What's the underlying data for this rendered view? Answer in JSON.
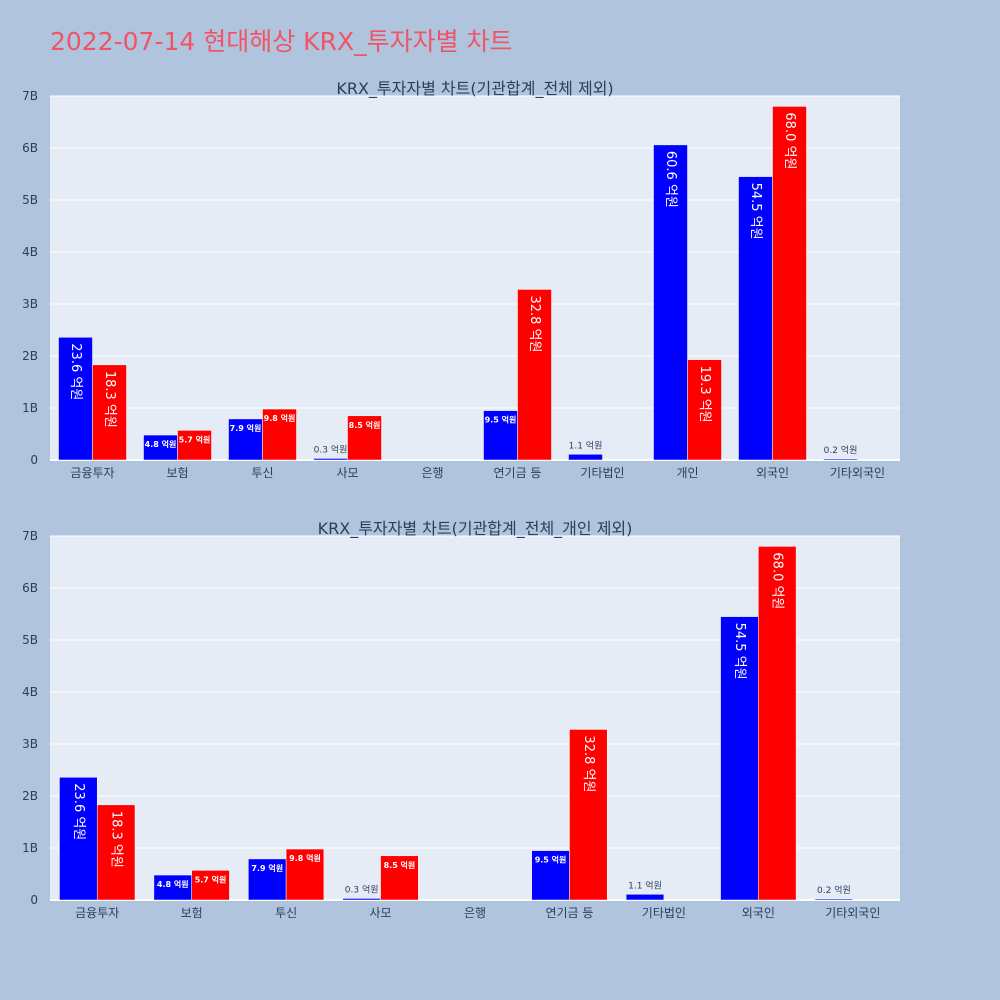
{
  "page": {
    "title": "2022-07-14 현대해상 KRX_투자자별 차트"
  },
  "colors": {
    "background": "#b0c4de",
    "plot_bg": "#e5ecf6",
    "title": "#ef5566",
    "series_1": "#0000ff",
    "series_2": "#ff0000",
    "text": "#2a3f5f"
  },
  "chart_data": [
    {
      "type": "bar",
      "title": "KRX_투자자별 차트(기관합계_전체 제외)",
      "categories": [
        "금융투자",
        "보험",
        "투신",
        "사모",
        "은행",
        "연기금 등",
        "기타법인",
        "개인",
        "외국인",
        "기타외국인"
      ],
      "series": [
        {
          "values": [
            2.36,
            0.48,
            0.79,
            0.03,
            0,
            0.95,
            0.11,
            6.06,
            5.45,
            0.02
          ],
          "labels": [
            "23.6 억원",
            "4.8 억원",
            "7.9 억원",
            "0.3 억원",
            "",
            "9.5 억원",
            "1.1 억원",
            "60.6 억원",
            "54.5 억원",
            "0.2 억원"
          ]
        },
        {
          "values": [
            1.83,
            0.57,
            0.98,
            0.85,
            0,
            3.28,
            0,
            1.93,
            6.8,
            0
          ],
          "labels": [
            "18.3 억원",
            "5.7 억원",
            "9.8 억원",
            "8.5 억원",
            "",
            "32.8 억원",
            "",
            "19.3 억원",
            "68.0 억원",
            ""
          ]
        }
      ],
      "ylim": [
        0,
        7
      ],
      "yticks": [
        "0",
        "1B",
        "2B",
        "3B",
        "4B",
        "5B",
        "6B",
        "7B"
      ],
      "grid": true
    },
    {
      "type": "bar",
      "title": "KRX_투자자별 차트(기관합계_전체_개인 제외)",
      "categories": [
        "금융투자",
        "보험",
        "투신",
        "사모",
        "은행",
        "연기금 등",
        "기타법인",
        "외국인",
        "기타외국인"
      ],
      "series": [
        {
          "values": [
            2.36,
            0.48,
            0.79,
            0.03,
            0,
            0.95,
            0.11,
            5.45,
            0.02
          ],
          "labels": [
            "23.6 억원",
            "4.8 억원",
            "7.9 억원",
            "0.3 억원",
            "",
            "9.5 억원",
            "1.1 억원",
            "54.5 억원",
            "0.2 억원"
          ]
        },
        {
          "values": [
            1.83,
            0.57,
            0.98,
            0.85,
            0,
            3.28,
            0,
            6.8,
            0
          ],
          "labels": [
            "18.3 억원",
            "5.7 억원",
            "9.8 억원",
            "8.5 억원",
            "",
            "32.8 억원",
            "",
            "68.0 억원",
            ""
          ]
        }
      ],
      "ylim": [
        0,
        7
      ],
      "yticks": [
        "0",
        "1B",
        "2B",
        "3B",
        "4B",
        "5B",
        "6B",
        "7B"
      ],
      "grid": true
    }
  ]
}
